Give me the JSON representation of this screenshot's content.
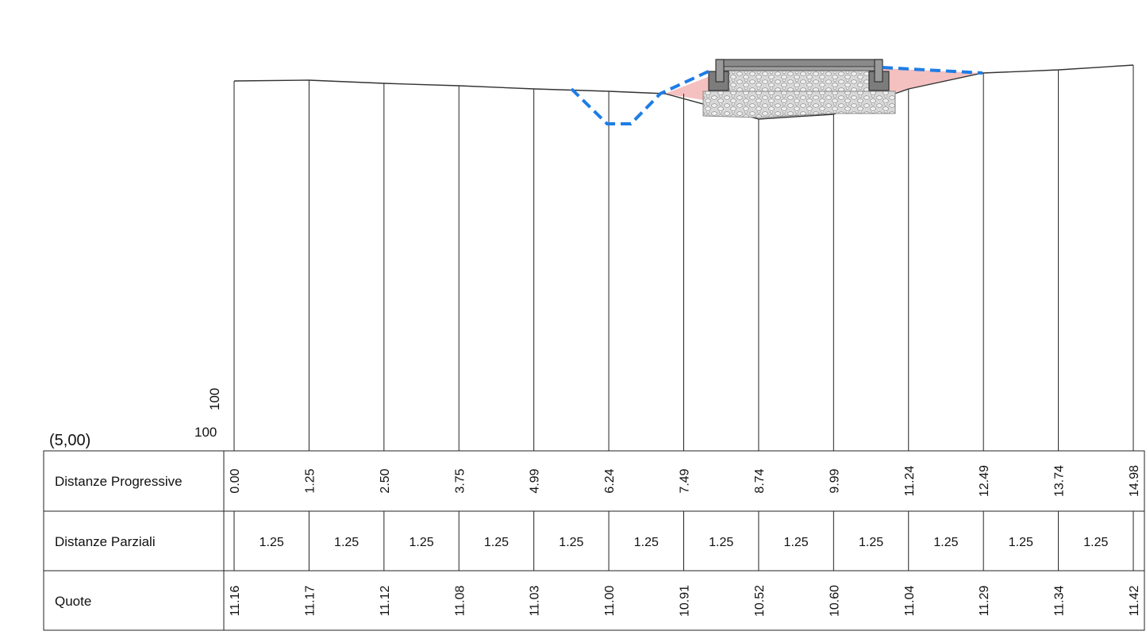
{
  "scale": {
    "ratio": "(5,00)",
    "vertical_label": "100",
    "horizontal_label": "100"
  },
  "table": {
    "rows": [
      {
        "key": "progressive",
        "label": "Distanze Progressive"
      },
      {
        "key": "partial",
        "label": "Distanze Parziali"
      },
      {
        "key": "elevation",
        "label": "Quote"
      }
    ],
    "progressive": [
      "0.00",
      "1.25",
      "2.50",
      "3.75",
      "4.99",
      "6.24",
      "7.49",
      "8.74",
      "9.99",
      "11.24",
      "12.49",
      "13.74",
      "14.98"
    ],
    "partial": [
      "1.25",
      "1.25",
      "1.25",
      "1.25",
      "1.25",
      "1.25",
      "1.25",
      "1.25",
      "1.25",
      "1.25",
      "1.25",
      "1.25"
    ],
    "elevations": [
      "11.16",
      "11.17",
      "11.12",
      "11.08",
      "11.03",
      "11.00",
      "10.91",
      "10.52",
      "10.60",
      "11.04",
      "11.29",
      "11.34",
      "11.42"
    ]
  },
  "colors": {
    "design_line": "#1e7de6",
    "fill_area": "#f5c0c0",
    "ground_line": "#333333",
    "ballast": "#d4d4d4"
  },
  "icons": {
    "roadbed": "track-ballast-section",
    "wall": "curb-block"
  }
}
